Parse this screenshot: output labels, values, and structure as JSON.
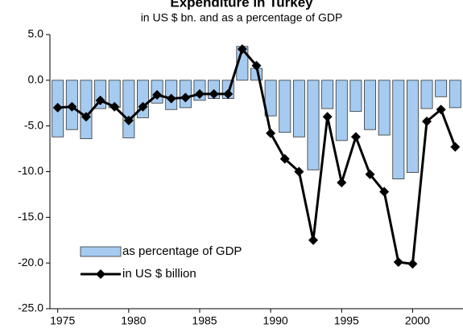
{
  "chart_data": {
    "type": "bar",
    "title": "Expenditure in Turkey",
    "subtitle": "in US $ bn. and as a percentage of GDP",
    "x": [
      1975,
      1976,
      1977,
      1978,
      1979,
      1980,
      1981,
      1982,
      1983,
      1984,
      1985,
      1986,
      1987,
      1988,
      1989,
      1990,
      1991,
      1992,
      1993,
      1994,
      1995,
      1996,
      1997,
      1998,
      1999,
      2000,
      2001,
      2002,
      2003
    ],
    "series": [
      {
        "name": "as percentage of GDP",
        "type": "bar",
        "color": "#a6cbf0",
        "values": [
          -6.2,
          -5.4,
          -6.4,
          -3.1,
          -3.0,
          -6.3,
          -4.1,
          -2.5,
          -3.2,
          -3.0,
          -2.2,
          -2.0,
          -2.0,
          3.7,
          1.3,
          -3.9,
          -5.7,
          -6.2,
          -9.8,
          -3.1,
          -6.6,
          -3.4,
          -5.4,
          -6.0,
          -10.8,
          -10.1,
          -3.1,
          -1.8,
          -3.0
        ]
      },
      {
        "name": "in US $ billion",
        "type": "line",
        "color": "#000000",
        "values": [
          -3.0,
          -2.9,
          -4.0,
          -2.2,
          -2.9,
          -4.4,
          -2.9,
          -1.6,
          -2.0,
          -1.9,
          -1.5,
          -1.5,
          -1.5,
          3.4,
          1.6,
          -5.8,
          -8.6,
          -10.0,
          -17.5,
          -4.0,
          -11.2,
          -6.2,
          -10.3,
          -12.2,
          -19.9,
          -20.1,
          -4.5,
          -3.2,
          -7.3
        ]
      }
    ],
    "xlim": [
      1974.45,
      2003.55
    ],
    "xticks": [
      1975,
      1980,
      1985,
      1990,
      1995,
      2000
    ],
    "ylim": [
      -25,
      5
    ],
    "yticks": [
      {
        "value": 5,
        "label": "5.0"
      },
      {
        "value": 0,
        "label": "0.0"
      },
      {
        "value": -5,
        "label": "-5.0"
      },
      {
        "value": -10,
        "label": "-10.0"
      },
      {
        "value": -15,
        "label": "-15.0"
      },
      {
        "value": -20,
        "label": "-20.0"
      },
      {
        "value": -25,
        "label": "-25.0"
      }
    ],
    "grid": false,
    "legend": "lower-left"
  }
}
